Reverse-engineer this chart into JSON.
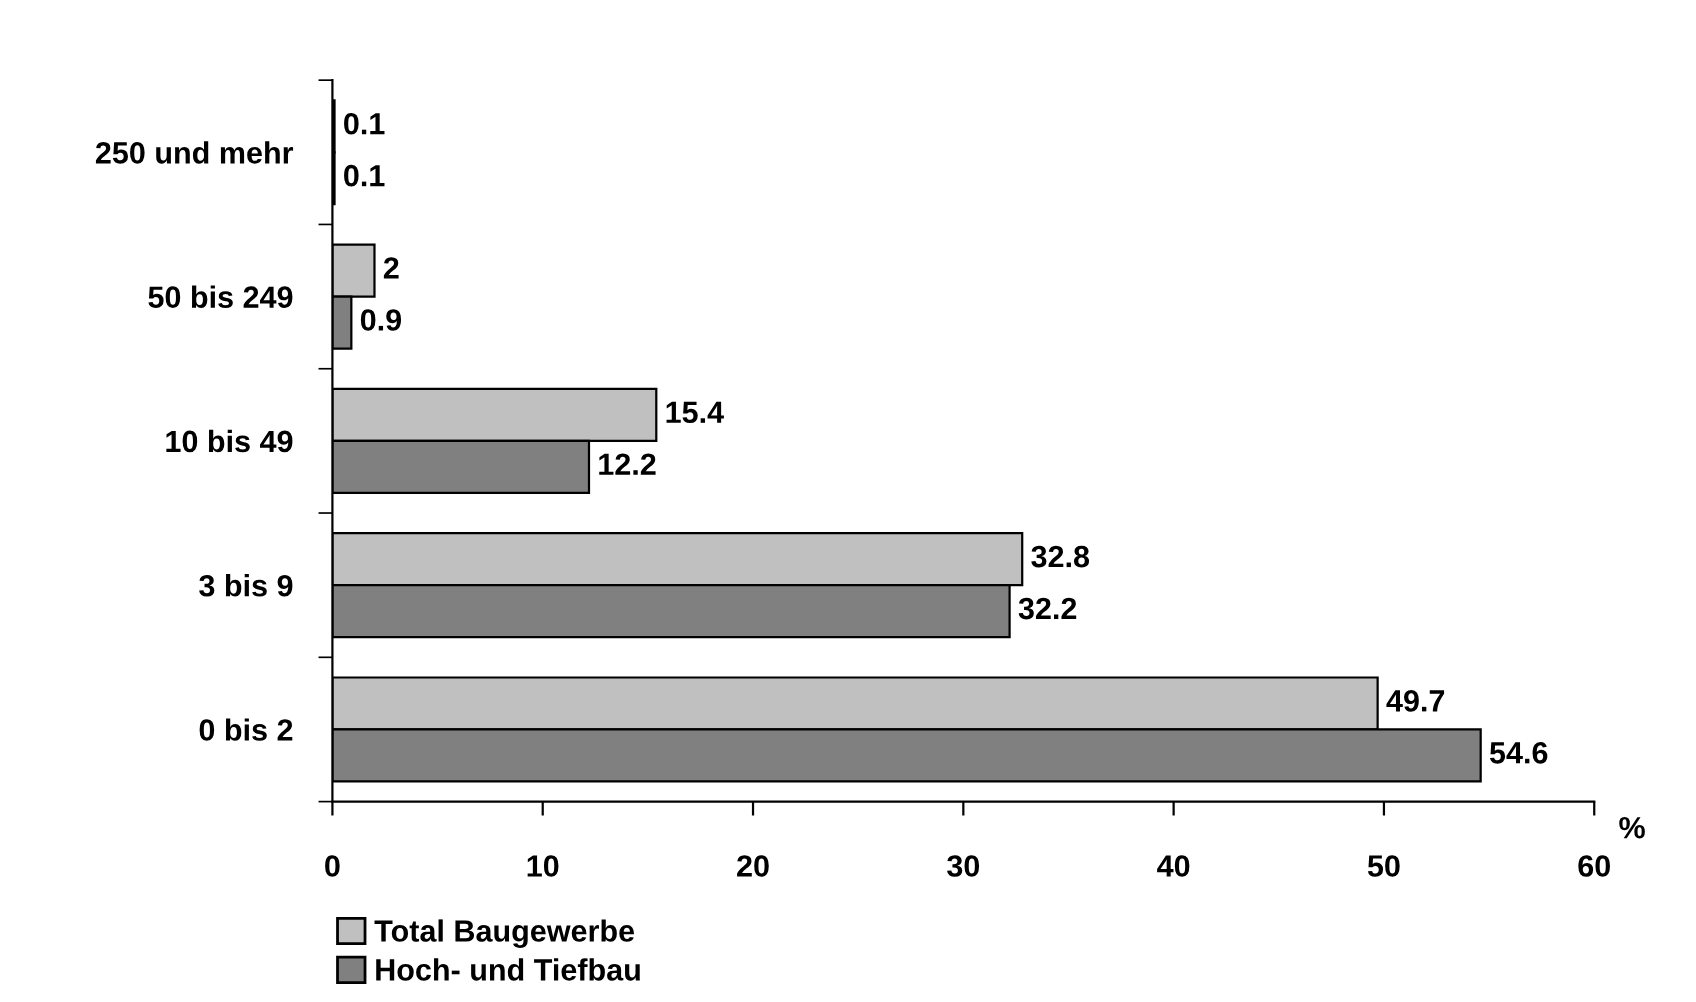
{
  "chart_data": {
    "type": "bar",
    "orientation": "horizontal",
    "xlabel": "%",
    "categories": [
      "250 und mehr",
      "50 bis 249",
      "10 bis 49",
      "3 bis 9",
      "0 bis 2"
    ],
    "series": [
      {
        "name": "Total Baugewerbe",
        "color": "#c0c0c0",
        "values": [
          0.1,
          2,
          15.4,
          32.8,
          49.7
        ]
      },
      {
        "name": "Hoch- und Tiefbau",
        "color": "#808080",
        "values": [
          0.1,
          0.9,
          12.2,
          32.2,
          54.6
        ]
      }
    ],
    "xlim": [
      0,
      60
    ],
    "xticks": [
      0,
      10,
      20,
      30,
      40,
      50,
      60
    ],
    "data_labels": true,
    "grid": false,
    "legend": "bottom left"
  }
}
